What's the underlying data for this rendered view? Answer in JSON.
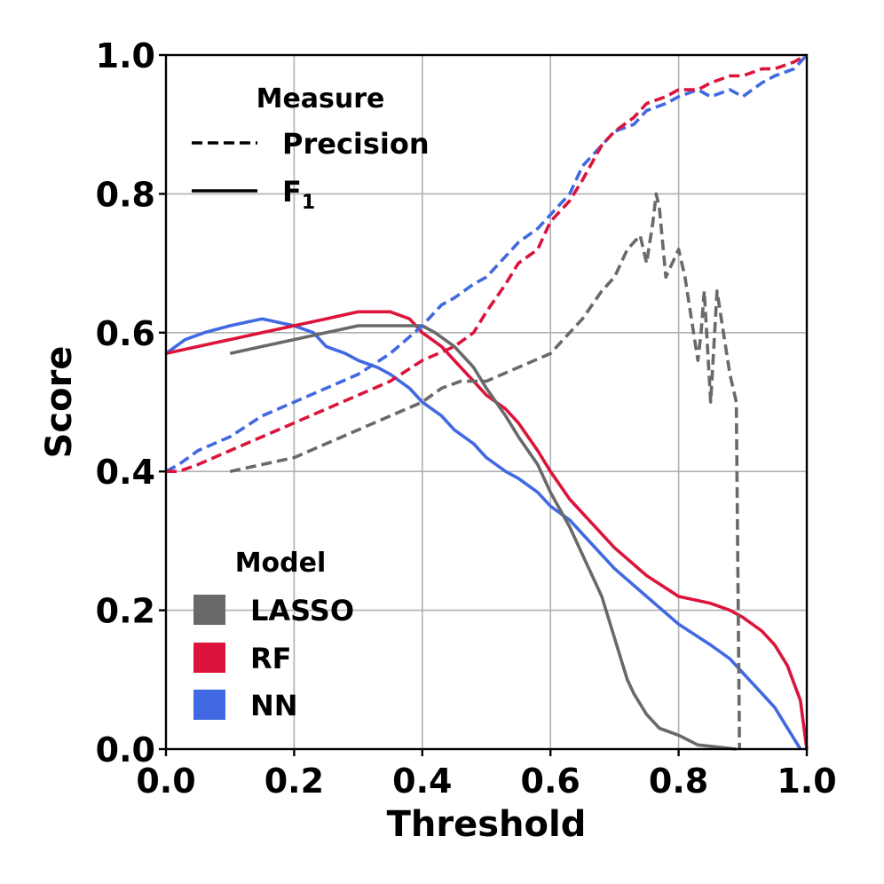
{
  "chart_data": {
    "type": "line",
    "title": "",
    "xlabel": "Threshold",
    "ylabel": "Score",
    "xlim": [
      0.0,
      1.0
    ],
    "ylim": [
      0.0,
      1.0
    ],
    "grid": true,
    "xticks": [
      "0.0",
      "0.2",
      "0.4",
      "0.6",
      "0.8",
      "1.0"
    ],
    "yticks": [
      "0.0",
      "0.2",
      "0.4",
      "0.6",
      "0.8",
      "1.0"
    ],
    "legend_measure": {
      "title": "Measure",
      "entries": [
        {
          "label": "Precision",
          "style": "dashed"
        },
        {
          "label": "F",
          "subscript": "1",
          "style": "solid"
        }
      ]
    },
    "legend_model": {
      "title": "Model",
      "entries": [
        {
          "label": "LASSO",
          "color": "#696969"
        },
        {
          "label": "RF",
          "color": "#dc143c"
        },
        {
          "label": "NN",
          "color": "#4169e1"
        }
      ]
    },
    "series": [
      {
        "name": "LASSO",
        "measure": "Precision",
        "color": "#696969",
        "x": [
          0.1,
          0.15,
          0.2,
          0.25,
          0.3,
          0.35,
          0.4,
          0.43,
          0.46,
          0.5,
          0.55,
          0.6,
          0.65,
          0.68,
          0.7,
          0.72,
          0.74,
          0.75,
          0.76,
          0.765,
          0.77,
          0.78,
          0.79,
          0.8,
          0.81,
          0.82,
          0.83,
          0.835,
          0.84,
          0.85,
          0.86,
          0.87,
          0.88,
          0.89,
          0.895
        ],
        "y": [
          0.4,
          0.41,
          0.42,
          0.44,
          0.46,
          0.48,
          0.5,
          0.52,
          0.53,
          0.53,
          0.55,
          0.57,
          0.62,
          0.66,
          0.68,
          0.72,
          0.74,
          0.7,
          0.76,
          0.8,
          0.78,
          0.68,
          0.7,
          0.72,
          0.68,
          0.62,
          0.56,
          0.6,
          0.66,
          0.5,
          0.66,
          0.6,
          0.54,
          0.5,
          0.0
        ]
      },
      {
        "name": "LASSO",
        "measure": "F1",
        "color": "#696969",
        "x": [
          0.1,
          0.15,
          0.2,
          0.25,
          0.3,
          0.35,
          0.38,
          0.4,
          0.42,
          0.45,
          0.48,
          0.5,
          0.53,
          0.55,
          0.58,
          0.6,
          0.63,
          0.65,
          0.68,
          0.7,
          0.72,
          0.73,
          0.75,
          0.77,
          0.8,
          0.83,
          0.87,
          0.89
        ],
        "y": [
          0.57,
          0.58,
          0.59,
          0.6,
          0.61,
          0.61,
          0.61,
          0.61,
          0.6,
          0.58,
          0.55,
          0.52,
          0.48,
          0.45,
          0.41,
          0.37,
          0.32,
          0.28,
          0.22,
          0.16,
          0.1,
          0.08,
          0.05,
          0.03,
          0.02,
          0.006,
          0.002,
          0.0
        ]
      },
      {
        "name": "RF",
        "measure": "Precision",
        "color": "#dc143c",
        "x": [
          0.0,
          0.02,
          0.05,
          0.1,
          0.15,
          0.2,
          0.25,
          0.3,
          0.35,
          0.4,
          0.45,
          0.48,
          0.5,
          0.53,
          0.55,
          0.58,
          0.6,
          0.63,
          0.65,
          0.68,
          0.7,
          0.73,
          0.75,
          0.78,
          0.8,
          0.83,
          0.85,
          0.88,
          0.9,
          0.93,
          0.95,
          0.98,
          1.0
        ],
        "y": [
          0.4,
          0.4,
          0.41,
          0.43,
          0.45,
          0.47,
          0.49,
          0.51,
          0.53,
          0.56,
          0.58,
          0.6,
          0.63,
          0.67,
          0.7,
          0.72,
          0.76,
          0.79,
          0.82,
          0.87,
          0.89,
          0.91,
          0.93,
          0.94,
          0.95,
          0.95,
          0.96,
          0.97,
          0.97,
          0.98,
          0.98,
          0.99,
          1.0
        ]
      },
      {
        "name": "RF",
        "measure": "F1",
        "color": "#dc143c",
        "x": [
          0.0,
          0.05,
          0.1,
          0.15,
          0.2,
          0.25,
          0.3,
          0.35,
          0.38,
          0.4,
          0.43,
          0.45,
          0.48,
          0.5,
          0.53,
          0.55,
          0.58,
          0.6,
          0.63,
          0.65,
          0.7,
          0.75,
          0.8,
          0.85,
          0.88,
          0.9,
          0.93,
          0.95,
          0.97,
          0.99,
          1.0
        ],
        "y": [
          0.57,
          0.58,
          0.59,
          0.6,
          0.61,
          0.62,
          0.63,
          0.63,
          0.62,
          0.6,
          0.58,
          0.56,
          0.53,
          0.51,
          0.49,
          0.47,
          0.43,
          0.4,
          0.36,
          0.34,
          0.29,
          0.25,
          0.22,
          0.21,
          0.2,
          0.19,
          0.17,
          0.15,
          0.12,
          0.07,
          0.0
        ]
      },
      {
        "name": "NN",
        "measure": "Precision",
        "color": "#4169e1",
        "x": [
          0.0,
          0.02,
          0.05,
          0.1,
          0.15,
          0.2,
          0.25,
          0.3,
          0.35,
          0.4,
          0.43,
          0.45,
          0.48,
          0.5,
          0.53,
          0.55,
          0.58,
          0.6,
          0.63,
          0.65,
          0.68,
          0.7,
          0.73,
          0.75,
          0.78,
          0.8,
          0.83,
          0.85,
          0.88,
          0.9,
          0.93,
          0.95,
          0.98,
          1.0
        ],
        "y": [
          0.4,
          0.41,
          0.43,
          0.45,
          0.48,
          0.5,
          0.52,
          0.54,
          0.57,
          0.61,
          0.64,
          0.65,
          0.67,
          0.68,
          0.71,
          0.73,
          0.75,
          0.77,
          0.8,
          0.84,
          0.87,
          0.89,
          0.9,
          0.92,
          0.93,
          0.94,
          0.95,
          0.94,
          0.95,
          0.94,
          0.96,
          0.97,
          0.98,
          1.0
        ]
      },
      {
        "name": "NN",
        "measure": "F1",
        "color": "#4169e1",
        "x": [
          0.0,
          0.03,
          0.06,
          0.1,
          0.15,
          0.2,
          0.23,
          0.25,
          0.28,
          0.3,
          0.33,
          0.35,
          0.38,
          0.4,
          0.43,
          0.45,
          0.48,
          0.5,
          0.53,
          0.55,
          0.58,
          0.6,
          0.63,
          0.65,
          0.7,
          0.75,
          0.8,
          0.85,
          0.88,
          0.9,
          0.93,
          0.95,
          0.97,
          0.99
        ],
        "y": [
          0.57,
          0.59,
          0.6,
          0.61,
          0.62,
          0.61,
          0.6,
          0.58,
          0.57,
          0.56,
          0.55,
          0.54,
          0.52,
          0.5,
          0.48,
          0.46,
          0.44,
          0.42,
          0.4,
          0.39,
          0.37,
          0.35,
          0.33,
          0.31,
          0.26,
          0.22,
          0.18,
          0.15,
          0.13,
          0.11,
          0.08,
          0.06,
          0.03,
          0.0
        ]
      }
    ]
  }
}
